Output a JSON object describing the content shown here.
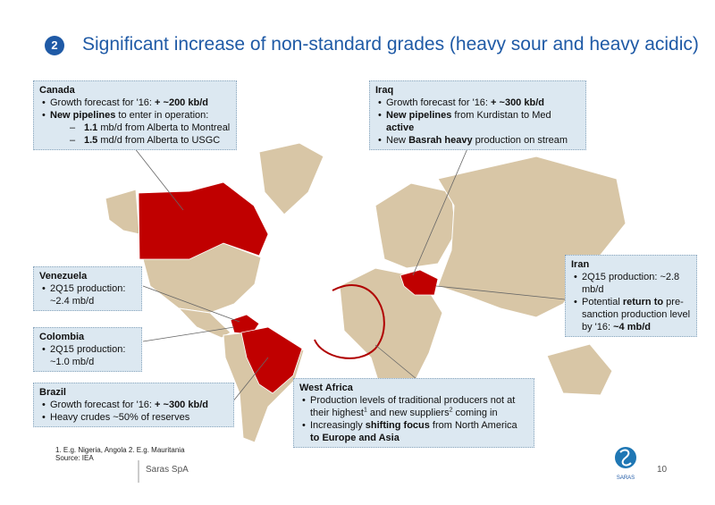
{
  "header": {
    "number": "2",
    "title": "Significant increase of non-standard grades (heavy sour and heavy acidic)"
  },
  "boxes": [
    {
      "title": "Canada",
      "items": [
        {
          "level": 1,
          "runs": [
            "Growth forecast for '16: ",
            {
              "text": "+ ~200 kb/d",
              "style": "bold"
            }
          ]
        },
        {
          "level": 1,
          "runs": [
            {
              "text": "New pipelines",
              "style": "bold"
            },
            " to enter in operation:"
          ]
        },
        {
          "level": 2,
          "runs": [
            {
              "text": "1.1",
              "style": "bold"
            },
            " mb/d from Alberta to Montreal"
          ]
        },
        {
          "level": 2,
          "runs": [
            {
              "text": "1.5",
              "style": "bold"
            },
            " md/d from Alberta to USGC"
          ]
        }
      ]
    },
    {
      "title": "Iraq",
      "items": [
        {
          "level": 1,
          "runs": [
            "Growth forecast for '16: ",
            {
              "text": "+ ~300 kb/d",
              "style": "bold"
            }
          ]
        },
        {
          "level": 1,
          "runs": [
            {
              "text": "New pipelines",
              "style": "bold"
            },
            " from Kurdistan to Med ",
            {
              "text": "active",
              "style": "bold"
            }
          ]
        },
        {
          "level": 1,
          "runs": [
            "New ",
            {
              "text": "Basrah heavy",
              "style": "bold"
            },
            " production on stream"
          ]
        }
      ]
    },
    {
      "title": "Venezuela",
      "items": [
        {
          "level": 1,
          "runs": [
            "2Q15 production: ~2.4 mb/d"
          ]
        }
      ]
    },
    {
      "title": "Colombia",
      "items": [
        {
          "level": 1,
          "runs": [
            "2Q15 production: ~1.0 mb/d"
          ]
        }
      ]
    },
    {
      "title": "Brazil",
      "items": [
        {
          "level": 1,
          "runs": [
            "Growth forecast for '16: ",
            {
              "text": "+ ~300 kb/d",
              "style": "bold"
            }
          ]
        },
        {
          "level": 1,
          "runs": [
            "Heavy crudes  ~50% of reserves"
          ]
        }
      ]
    },
    {
      "title": "Iran",
      "items": [
        {
          "level": 1,
          "runs": [
            "2Q15 production: ~2.8 mb/d"
          ]
        },
        {
          "level": 1,
          "runs": [
            "Potential ",
            {
              "text": "return to",
              "style": "bold"
            },
            " pre-sanction production level by '16: ",
            {
              "text": "~4 mb/d",
              "style": "bold"
            }
          ]
        }
      ]
    },
    {
      "title": "West Africa",
      "items": [
        {
          "level": 1,
          "runs": [
            "Production levels of traditional producers not at their highest",
            {
              "text": "1",
              "style": "sup"
            },
            " and new suppliers",
            {
              "text": "2",
              "style": "sup"
            },
            " coming in"
          ]
        },
        {
          "level": 1,
          "runs": [
            "Increasingly ",
            {
              "text": "shifting focus",
              "style": "bold"
            },
            " from North America ",
            {
              "text": "to Europe and Asia",
              "style": "bold"
            }
          ]
        }
      ]
    }
  ],
  "footer": {
    "footnote": "1. E.g. Nigeria, Angola  2. E.g. Mauritania",
    "source": "Source: IEA",
    "company": "Saras SpA",
    "page": "10",
    "logo": "SARAS"
  }
}
